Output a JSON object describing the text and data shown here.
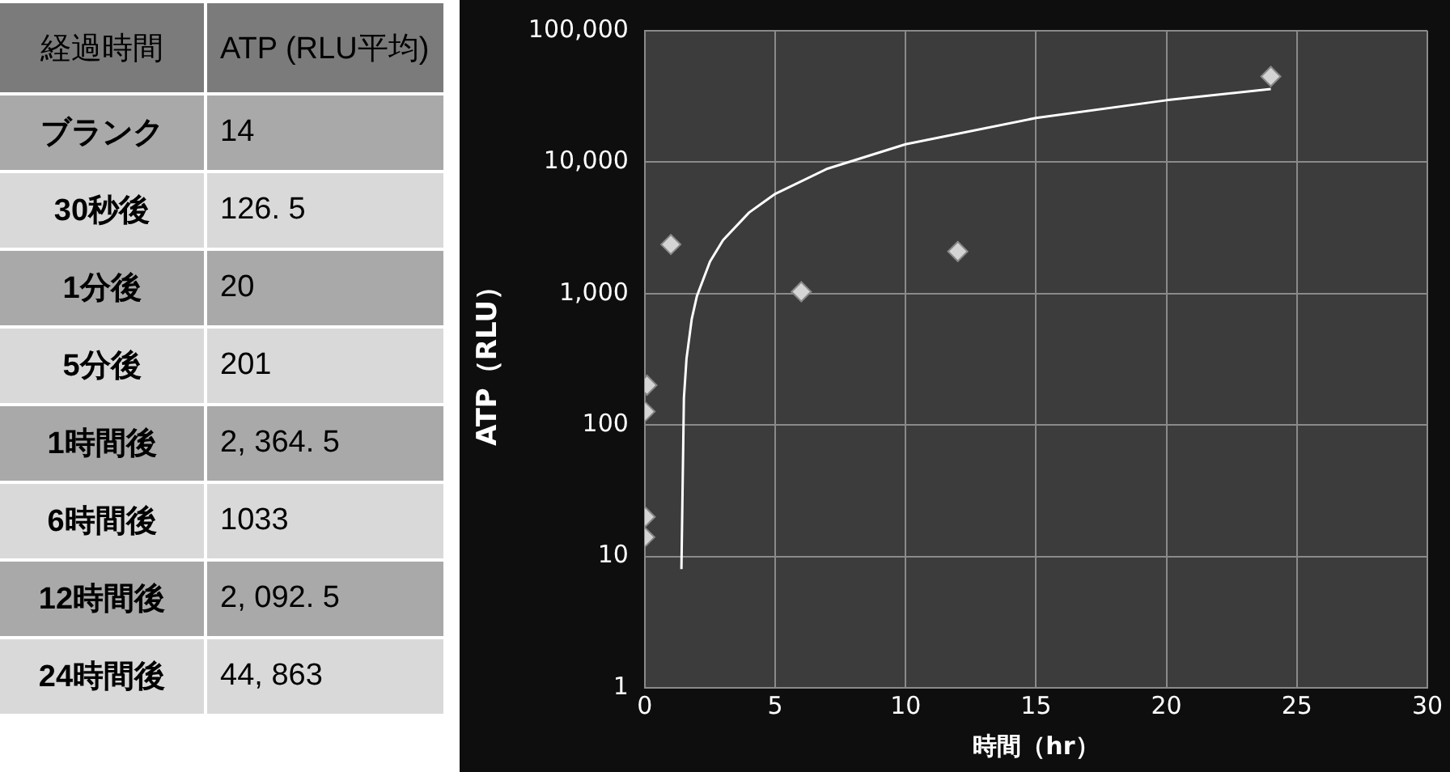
{
  "chart_data": [
    {
      "type": "other",
      "annotations": [
        "経過時間",
        "ATP (RLU平均)",
        "ブランク",
        "14",
        "30秒後",
        "126. 5",
        "1分後",
        "20",
        "5分後",
        "201",
        "1時間後",
        "2, 364. 5",
        "6時間後",
        "1033",
        "12時間後",
        "2, 092. 5",
        "24時間後",
        "44, 863"
      ]
    },
    {
      "type": "scatter",
      "xlabel": "時間（hr）",
      "ylabel": "ATP（RLU）",
      "xlim": [
        0,
        30
      ],
      "xticks": [
        0,
        5,
        10,
        15,
        20,
        25,
        30
      ],
      "ylim": [
        1,
        100000
      ],
      "yticks": [
        {
          "value": 1,
          "label": "1"
        },
        {
          "value": 10,
          "label": "10"
        },
        {
          "value": 100,
          "label": "100"
        },
        {
          "value": 1000,
          "label": "1,000"
        },
        {
          "value": 10000,
          "label": "10,000"
        },
        {
          "value": 100000,
          "label": "100,000"
        }
      ],
      "log": "y",
      "grid": true,
      "legend": false,
      "marker": "diamond",
      "series": [
        {
          "type": "scatter",
          "color": "#d4d4d4",
          "x": [
            0,
            0.0083,
            0.0167,
            0.083,
            1,
            6,
            12,
            24
          ],
          "values": [
            14,
            126.5,
            20,
            201,
            2364.5,
            1033,
            2092.5,
            44863
          ]
        },
        {
          "type": "line",
          "color": "#ffffff",
          "marker": "none",
          "x": [
            1.405,
            1.5,
            1.6,
            1.8,
            2,
            2.5,
            3,
            4,
            5,
            7,
            10,
            15,
            20,
            24
          ],
          "values": [
            8,
            160,
            320,
            640,
            960,
            1750,
            2550,
            4140,
            5740,
            8920,
            13700,
            21700,
            29600,
            36000
          ]
        }
      ]
    }
  ]
}
